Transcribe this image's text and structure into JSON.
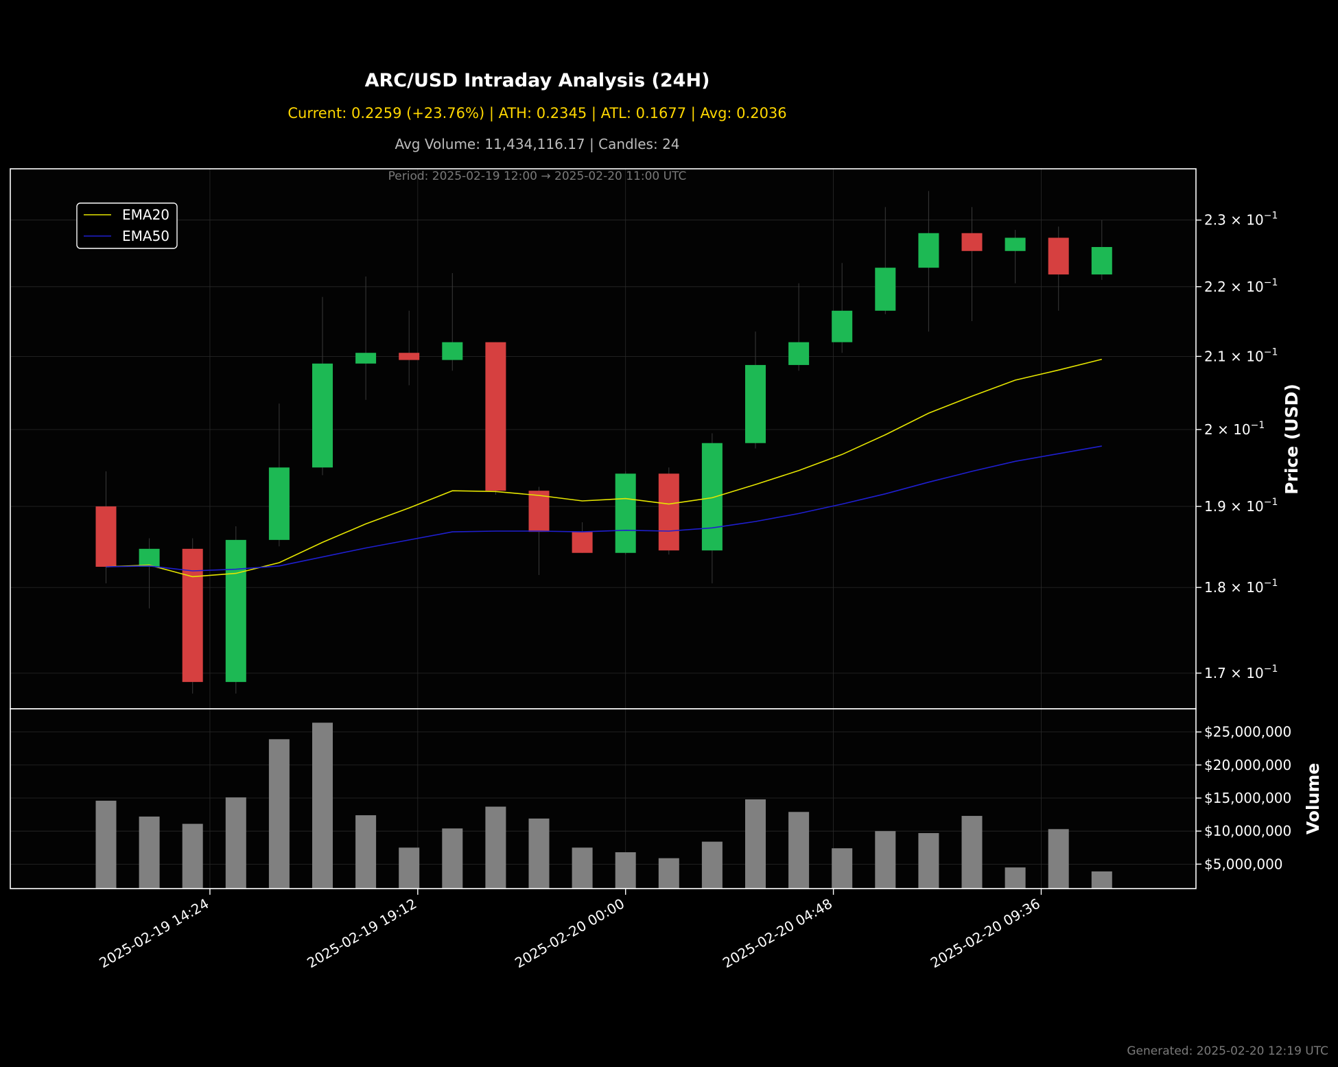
{
  "title": "ARC/USD Intraday Analysis (24H)",
  "subtitle": "Current: 0.2259 (+23.76%) | ATH: 0.2345 | ATL: 0.1677 | Avg: 0.2036",
  "avg_volume_line": "Avg Volume: 11,434,116.17 | Candles: 24",
  "period_line": "Period: 2025-02-19 12:00 → 2025-02-20 11:00 UTC",
  "footer": "Generated: 2025-02-20 12:19 UTC",
  "colors": {
    "background": "#000000",
    "up": "#1db954",
    "down": "#d64040",
    "ema20": "#e6e600",
    "ema50": "#1f1fd0",
    "volume": "#808080",
    "axes": "#ffffff"
  },
  "chart_data": [
    {
      "type": "candlestick",
      "ylabel": "Price (USD)",
      "yscale": "log",
      "ylim": [
        0.166,
        0.238
      ],
      "y_ticks": [
        {
          "value": 0.17,
          "mantissa": "1.7"
        },
        {
          "value": 0.18,
          "mantissa": "1.8"
        },
        {
          "value": 0.19,
          "mantissa": "1.9"
        },
        {
          "value": 0.2,
          "mantissa": "2"
        },
        {
          "value": 0.21,
          "mantissa": "2.1"
        },
        {
          "value": 0.22,
          "mantissa": "2.2"
        },
        {
          "value": 0.23,
          "mantissa": "2.3"
        }
      ],
      "y_tick_suffix": {
        "base": "× 10",
        "exponent": "−1"
      },
      "x": [
        "2025-02-19 12:00",
        "2025-02-19 13:00",
        "2025-02-19 14:00",
        "2025-02-19 15:00",
        "2025-02-19 16:00",
        "2025-02-19 17:00",
        "2025-02-19 18:00",
        "2025-02-19 19:00",
        "2025-02-19 20:00",
        "2025-02-19 21:00",
        "2025-02-19 22:00",
        "2025-02-19 23:00",
        "2025-02-20 00:00",
        "2025-02-20 01:00",
        "2025-02-20 02:00",
        "2025-02-20 03:00",
        "2025-02-20 04:00",
        "2025-02-20 05:00",
        "2025-02-20 06:00",
        "2025-02-20 07:00",
        "2025-02-20 08:00",
        "2025-02-20 09:00",
        "2025-02-20 10:00",
        "2025-02-20 11:00"
      ],
      "candles": [
        {
          "open": 0.19,
          "high": 0.1945,
          "low": 0.1805,
          "close": 0.1825
        },
        {
          "open": 0.1825,
          "high": 0.186,
          "low": 0.1775,
          "close": 0.1847
        },
        {
          "open": 0.1847,
          "high": 0.186,
          "low": 0.1677,
          "close": 0.169
        },
        {
          "open": 0.169,
          "high": 0.1875,
          "low": 0.1677,
          "close": 0.1858
        },
        {
          "open": 0.1858,
          "high": 0.2035,
          "low": 0.185,
          "close": 0.195
        },
        {
          "open": 0.195,
          "high": 0.2185,
          "low": 0.194,
          "close": 0.209
        },
        {
          "open": 0.209,
          "high": 0.2215,
          "low": 0.204,
          "close": 0.2105
        },
        {
          "open": 0.2105,
          "high": 0.2165,
          "low": 0.206,
          "close": 0.2095
        },
        {
          "open": 0.2095,
          "high": 0.222,
          "low": 0.208,
          "close": 0.212
        },
        {
          "open": 0.212,
          "high": 0.212,
          "low": 0.1915,
          "close": 0.192
        },
        {
          "open": 0.192,
          "high": 0.1925,
          "low": 0.1815,
          "close": 0.1868
        },
        {
          "open": 0.1868,
          "high": 0.188,
          "low": 0.1842,
          "close": 0.1842
        },
        {
          "open": 0.1842,
          "high": 0.1945,
          "low": 0.184,
          "close": 0.1942
        },
        {
          "open": 0.1942,
          "high": 0.195,
          "low": 0.184,
          "close": 0.1845
        },
        {
          "open": 0.1845,
          "high": 0.1995,
          "low": 0.1805,
          "close": 0.1982
        },
        {
          "open": 0.1982,
          "high": 0.2135,
          "low": 0.1975,
          "close": 0.2088
        },
        {
          "open": 0.2088,
          "high": 0.2205,
          "low": 0.208,
          "close": 0.212
        },
        {
          "open": 0.212,
          "high": 0.2235,
          "low": 0.2105,
          "close": 0.2165
        },
        {
          "open": 0.2165,
          "high": 0.232,
          "low": 0.216,
          "close": 0.2228
        },
        {
          "open": 0.2228,
          "high": 0.2345,
          "low": 0.2135,
          "close": 0.228
        },
        {
          "open": 0.228,
          "high": 0.232,
          "low": 0.215,
          "close": 0.2253
        },
        {
          "open": 0.2253,
          "high": 0.2285,
          "low": 0.2205,
          "close": 0.2273
        },
        {
          "open": 0.2273,
          "high": 0.229,
          "low": 0.2165,
          "close": 0.2218
        },
        {
          "open": 0.2218,
          "high": 0.23,
          "low": 0.221,
          "close": 0.2259
        }
      ],
      "series": [
        {
          "name": "EMA20",
          "values": [
            0.1825,
            0.1827,
            0.1813,
            0.1817,
            0.183,
            0.1855,
            0.1878,
            0.1898,
            0.192,
            0.1919,
            0.1914,
            0.1907,
            0.191,
            0.1903,
            0.1911,
            0.1928,
            0.1946,
            0.1967,
            0.1993,
            0.2022,
            0.2045,
            0.2067,
            0.2081,
            0.2096
          ]
        },
        {
          "name": "EMA50",
          "values": [
            0.1825,
            0.1826,
            0.182,
            0.1822,
            0.1826,
            0.1837,
            0.1848,
            0.1858,
            0.1868,
            0.1869,
            0.1869,
            0.1868,
            0.187,
            0.1869,
            0.1873,
            0.1881,
            0.1891,
            0.1903,
            0.1916,
            0.1931,
            0.1945,
            0.1958,
            0.1968,
            0.1978
          ]
        }
      ],
      "legend": {
        "position": "top-left",
        "entries": [
          "EMA20",
          "EMA50"
        ]
      },
      "grid": true
    },
    {
      "type": "bar",
      "ylabel": "Volume",
      "ylim": [
        1300000,
        28500000
      ],
      "y_ticks": [
        {
          "value": 5000000,
          "label": "$5,000,000"
        },
        {
          "value": 10000000,
          "label": "$10,000,000"
        },
        {
          "value": 15000000,
          "label": "$15,000,000"
        },
        {
          "value": 20000000,
          "label": "$20,000,000"
        },
        {
          "value": 25000000,
          "label": "$25,000,000"
        }
      ],
      "values": [
        14600000,
        12200000,
        11100000,
        15100000,
        23900000,
        26400000,
        12400000,
        7500000,
        10400000,
        13700000,
        11900000,
        7500000,
        6800000,
        5900000,
        8400000,
        14800000,
        12900000,
        7400000,
        10000000,
        9700000,
        12300000,
        4500000,
        10300000,
        3900000
      ],
      "grid": true
    }
  ],
  "x_axis": {
    "tick_labels": [
      {
        "at": "2025-02-19 14:24",
        "label": "2025-02-19 14:24"
      },
      {
        "at": "2025-02-19 19:12",
        "label": "2025-02-19 19:12"
      },
      {
        "at": "2025-02-20 00:00",
        "label": "2025-02-20 00:00"
      },
      {
        "at": "2025-02-20 04:48",
        "label": "2025-02-20 04:48"
      },
      {
        "at": "2025-02-20 09:36",
        "label": "2025-02-20 09:36"
      }
    ]
  }
}
